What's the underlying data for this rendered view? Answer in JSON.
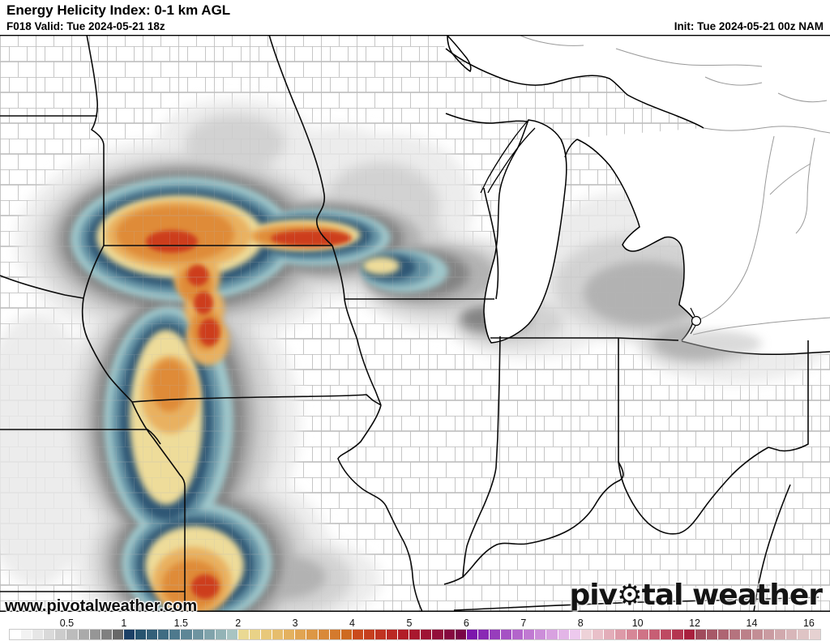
{
  "header": {
    "title": "Energy Helicity Index: 0-1 km AGL",
    "subtitle": "F018 Valid: Tue 2024-05-21 18z",
    "init": "Init: Tue 2024-05-21 00z NAM"
  },
  "watermark": "www.pivotalweather.com",
  "logo": {
    "part1": "piv",
    "gear_icon": "⚙",
    "part2": "tal weather"
  },
  "map": {
    "background_color": "#ffffff",
    "county_line_color": "#b8b8b8",
    "state_line_color": "#000000",
    "field_colors": {
      "gray_light": "#ececec",
      "gray_mid": "#b2b2b2",
      "gray_dark": "#838383",
      "blue_outer": "#9ec6ca",
      "blue_mid": "#6693a4",
      "blue_inner": "#2e5775",
      "yellow": "#eedc9a",
      "orange": "#e9b160",
      "orange_deep": "#df8b38",
      "red": "#cd3d1e"
    }
  },
  "colorbar": {
    "ticks": [
      {
        "label": "0.5",
        "b": 5
      },
      {
        "label": "1",
        "b": 10
      },
      {
        "label": "1.5",
        "b": 15
      },
      {
        "label": "2",
        "b": 20
      },
      {
        "label": "3",
        "b": 25
      },
      {
        "label": "4",
        "b": 30
      },
      {
        "label": "5",
        "b": 35
      },
      {
        "label": "6",
        "b": 40
      },
      {
        "label": "7",
        "b": 45
      },
      {
        "label": "8",
        "b": 50
      },
      {
        "label": "10",
        "b": 55
      },
      {
        "label": "12",
        "b": 60
      },
      {
        "label": "14",
        "b": 65
      },
      {
        "label": "16",
        "b": 70
      }
    ],
    "cells": [
      "#ffffff",
      "#f2f2f2",
      "#e6e6e6",
      "#d9d9d9",
      "#cccccc",
      "#bcbcbc",
      "#aaaaaa",
      "#969696",
      "#808080",
      "#686868",
      "#1c4066",
      "#27536f",
      "#335f79",
      "#406c83",
      "#4e798d",
      "#5d8696",
      "#6e94a0",
      "#80a3ab",
      "#93b3b6",
      "#a8c4c2",
      "#ead993",
      "#e9d287",
      "#e8c87a",
      "#e6bd6d",
      "#e4b15f",
      "#e1a452",
      "#dd9745",
      "#d98939",
      "#d47a2d",
      "#ce6a21",
      "#ca4a1c",
      "#c63f1e",
      "#c03321",
      "#ba2824",
      "#b21d28",
      "#a9182e",
      "#9f1334",
      "#930e3a",
      "#860940",
      "#790546",
      "#7c16ac",
      "#8929b4",
      "#973dbc",
      "#a551c4",
      "#b365cb",
      "#c079d2",
      "#cc8dd9",
      "#d8a1e0",
      "#e3b5e7",
      "#edc9ee",
      "#eed2d8",
      "#e9c0c9",
      "#e3adb9",
      "#dd9aa8",
      "#d68797",
      "#cf7386",
      "#c75e74",
      "#be4a62",
      "#b43550",
      "#a9203e",
      "#a04b5c",
      "#a75867",
      "#ae6572",
      "#b5737e",
      "#bc8089",
      "#c38e95",
      "#ca9ba1",
      "#d1a9ad",
      "#d8b6b9",
      "#dfc4c5",
      "#e6d1d1"
    ]
  }
}
